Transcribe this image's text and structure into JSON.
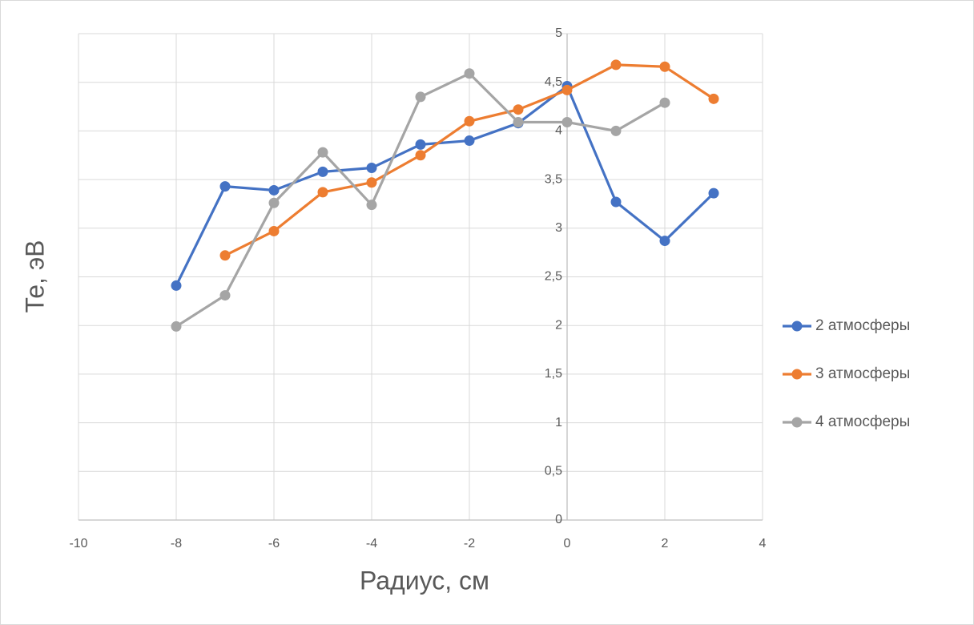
{
  "chart_data": {
    "type": "line",
    "x_label": "Радиус, см",
    "y_label": "Те, эВ",
    "x": [
      -8,
      -7,
      -6,
      -5,
      -4,
      -3,
      -2,
      -1,
      0,
      1,
      2,
      3
    ],
    "series": [
      {
        "name": "2 атмосферы",
        "color": "#4472c4",
        "values": [
          2.41,
          3.43,
          3.39,
          3.58,
          3.62,
          3.86,
          3.9,
          4.08,
          4.46,
          3.27,
          2.87,
          3.36
        ]
      },
      {
        "name": "3 атмосферы",
        "color": "#ed7d31",
        "values": [
          null,
          2.72,
          2.97,
          3.37,
          3.47,
          3.75,
          4.1,
          4.22,
          4.42,
          4.68,
          4.66,
          4.33
        ]
      },
      {
        "name": "4 атмосферы",
        "color": "#a5a5a5",
        "values": [
          1.99,
          2.31,
          3.26,
          3.78,
          3.24,
          4.35,
          4.59,
          4.09,
          4.09,
          4.0,
          4.29,
          null
        ]
      }
    ],
    "xlim": [
      -10,
      4
    ],
    "xticks": [
      -10,
      -8,
      -6,
      -4,
      -2,
      0,
      2,
      4
    ],
    "ylim": [
      0,
      5
    ],
    "yticks": [
      0,
      {
        "value": 0.5,
        "label": "0,5"
      },
      1,
      {
        "value": 1.5,
        "label": "1,5"
      },
      2,
      {
        "value": 2.5,
        "label": "2,5"
      },
      3,
      {
        "value": 3.5,
        "label": "3,5"
      },
      4,
      {
        "value": 4.5,
        "label": "4,5"
      },
      5
    ],
    "grid": true,
    "legend": "right"
  }
}
